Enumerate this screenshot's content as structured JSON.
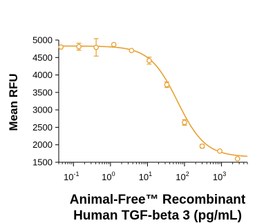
{
  "chart_data": {
    "type": "scatter",
    "xscale": "log",
    "ylabel": "Mean RFU",
    "xlabel_line1": "Animal-Free™ Recombinant",
    "xlabel_line2": "Human TGF-beta 3 (pg/mL)",
    "xlim": [
      0.04,
      5000
    ],
    "ylim": [
      1500,
      5000
    ],
    "y_ticks": [
      1500,
      2000,
      2500,
      3000,
      3500,
      4000,
      4500,
      5000
    ],
    "x_ticks": [
      {
        "value": 0.1,
        "base": "10",
        "exp": "-1"
      },
      {
        "value": 1,
        "base": "10",
        "exp": "0"
      },
      {
        "value": 10,
        "base": "10",
        "exp": "1"
      },
      {
        "value": 100,
        "base": "10",
        "exp": "2"
      },
      {
        "value": 1000,
        "base": "10",
        "exp": "3"
      }
    ],
    "color": "#e8a030",
    "series": [
      {
        "x": [
          0.046,
          0.14,
          0.41,
          1.23,
          3.7,
          11.1,
          33.3,
          100,
          300,
          900,
          2700
        ],
        "y": [
          4800,
          4810,
          4790,
          4870,
          4700,
          4410,
          3720,
          2640,
          1960,
          1820,
          1600
        ],
        "err": [
          0,
          100,
          250,
          0,
          0,
          100,
          80,
          80,
          50,
          0,
          0
        ]
      }
    ],
    "fit": {
      "type": "4PL",
      "top": 4830,
      "bottom": 1650,
      "ec50": 65,
      "hill": 1.15
    }
  }
}
